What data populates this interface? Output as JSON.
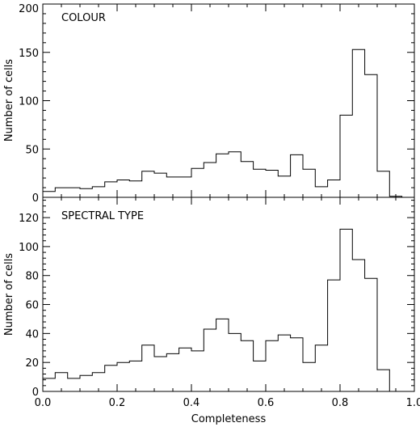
{
  "chart_data": [
    {
      "type": "bar",
      "label": "COLOUR",
      "ylabel": "Number of cells",
      "xlim": [
        0.0,
        1.0
      ],
      "ylim": [
        0,
        200
      ],
      "yticks": [
        "0",
        "50",
        "100",
        "150",
        "200"
      ],
      "bin_width": 0.03333,
      "bin_start": 0.0,
      "values": [
        6,
        10,
        10,
        9,
        11,
        16,
        18,
        17,
        27,
        25,
        21,
        21,
        30,
        36,
        45,
        47,
        37,
        29,
        28,
        22,
        44,
        29,
        11,
        18,
        85,
        153,
        127,
        27,
        1,
        0
      ]
    },
    {
      "type": "bar",
      "label": "SPECTRAL TYPE",
      "ylabel": "Number of cells",
      "xlabel": "Completeness",
      "xlim": [
        0.0,
        1.0
      ],
      "ylim": [
        0,
        134
      ],
      "yticks": [
        "0",
        "20",
        "40",
        "60",
        "80",
        "100",
        "120"
      ],
      "xticks": [
        "0.0",
        "0.2",
        "0.4",
        "0.6",
        "0.8",
        "1.0"
      ],
      "bin_width": 0.03333,
      "bin_start": 0.0,
      "values": [
        9,
        13,
        9,
        11,
        13,
        18,
        20,
        21,
        32,
        24,
        26,
        30,
        28,
        43,
        50,
        40,
        35,
        21,
        35,
        39,
        37,
        20,
        32,
        77,
        112,
        91,
        78,
        15,
        0,
        0
      ]
    }
  ]
}
